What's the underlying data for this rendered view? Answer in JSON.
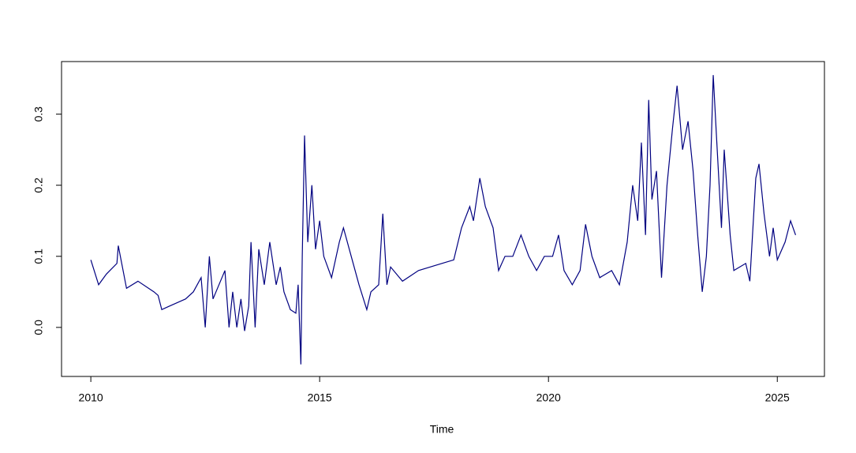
{
  "chart_data": {
    "type": "line",
    "x_label": "Time",
    "color": "#000080",
    "x": [
      2010.0,
      2010.17,
      2010.34,
      2010.57,
      2010.6,
      2010.78,
      2011.03,
      2011.38,
      2011.47,
      2011.55,
      2011.72,
      2012.07,
      2012.24,
      2012.41,
      2012.5,
      2012.59,
      2012.67,
      2012.93,
      2013.02,
      2013.1,
      2013.19,
      2013.28,
      2013.36,
      2013.45,
      2013.5,
      2013.59,
      2013.67,
      2013.79,
      2013.91,
      2014.05,
      2014.14,
      2014.22,
      2014.36,
      2014.48,
      2014.53,
      2014.59,
      2014.62,
      2014.67,
      2014.74,
      2014.83,
      2014.91,
      2015.0,
      2015.09,
      2015.26,
      2015.43,
      2015.52,
      2015.69,
      2015.86,
      2016.03,
      2016.12,
      2016.29,
      2016.38,
      2016.47,
      2016.55,
      2016.81,
      2017.16,
      2017.67,
      2017.93,
      2018.1,
      2018.28,
      2018.36,
      2018.5,
      2018.62,
      2018.79,
      2018.91,
      2019.05,
      2019.22,
      2019.4,
      2019.57,
      2019.74,
      2019.91,
      2020.09,
      2020.22,
      2020.34,
      2020.52,
      2020.69,
      2020.81,
      2020.95,
      2021.12,
      2021.38,
      2021.55,
      2021.72,
      2021.84,
      2021.95,
      2022.03,
      2022.12,
      2022.19,
      2022.26,
      2022.36,
      2022.47,
      2022.59,
      2022.71,
      2022.81,
      2022.93,
      2023.05,
      2023.16,
      2023.26,
      2023.36,
      2023.45,
      2023.53,
      2023.6,
      2023.67,
      2023.78,
      2023.84,
      2023.97,
      2024.05,
      2024.31,
      2024.4,
      2024.53,
      2024.6,
      2024.71,
      2024.83,
      2024.91,
      2025.0,
      2025.17,
      2025.29,
      2025.4
    ],
    "values": [
      0.095,
      0.06,
      0.075,
      0.09,
      0.115,
      0.055,
      0.065,
      0.05,
      0.045,
      0.025,
      0.03,
      0.04,
      0.05,
      0.07,
      0.0,
      0.1,
      0.04,
      0.08,
      0.0,
      0.05,
      0.0,
      0.04,
      -0.005,
      0.03,
      0.12,
      0.0,
      0.11,
      0.06,
      0.12,
      0.06,
      0.085,
      0.05,
      0.025,
      0.02,
      0.06,
      -0.052,
      0.1,
      0.27,
      0.12,
      0.2,
      0.11,
      0.15,
      0.1,
      0.07,
      0.12,
      0.14,
      0.1,
      0.06,
      0.025,
      0.05,
      0.06,
      0.16,
      0.06,
      0.085,
      0.065,
      0.08,
      0.09,
      0.095,
      0.14,
      0.17,
      0.15,
      0.21,
      0.17,
      0.14,
      0.08,
      0.1,
      0.1,
      0.13,
      0.1,
      0.08,
      0.1,
      0.1,
      0.13,
      0.08,
      0.06,
      0.08,
      0.145,
      0.1,
      0.07,
      0.08,
      0.06,
      0.12,
      0.2,
      0.15,
      0.26,
      0.13,
      0.32,
      0.18,
      0.22,
      0.07,
      0.2,
      0.28,
      0.34,
      0.25,
      0.29,
      0.22,
      0.13,
      0.05,
      0.1,
      0.2,
      0.355,
      0.27,
      0.14,
      0.25,
      0.13,
      0.08,
      0.09,
      0.065,
      0.21,
      0.23,
      0.16,
      0.1,
      0.14,
      0.095,
      0.12,
      0.15,
      0.13
    ],
    "xlim": [
      2009.36,
      2026.03
    ],
    "xticks": [
      2010,
      2015,
      2020,
      2025
    ],
    "ylim": [
      -0.069,
      0.374
    ],
    "yticks": [
      {
        "value": 0,
        "label": "0.0"
      },
      0.1,
      0.2,
      0.3
    ]
  }
}
